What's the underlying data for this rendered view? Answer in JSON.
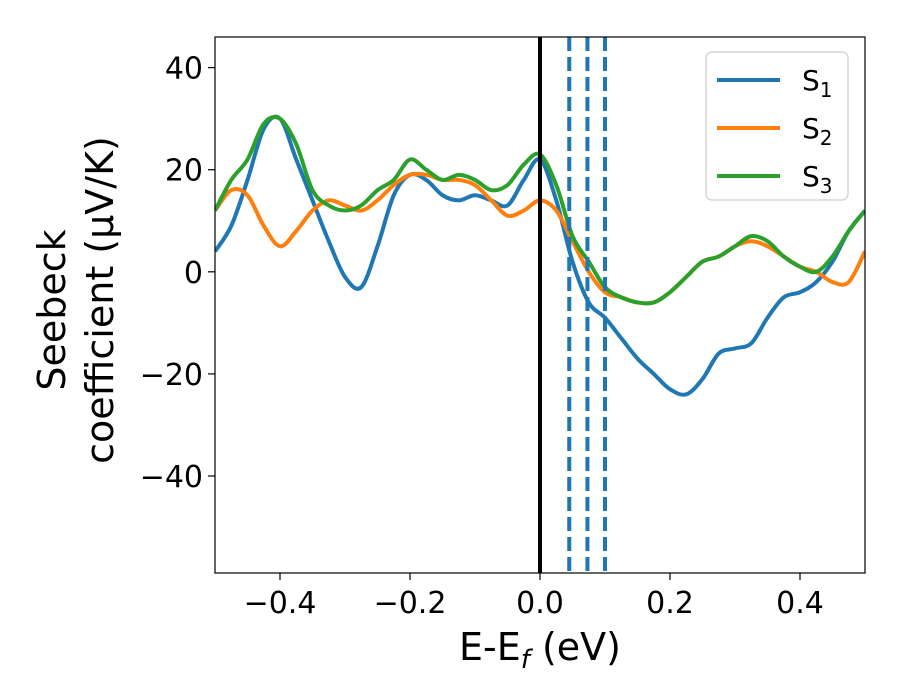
{
  "chart_data": {
    "type": "line",
    "title": "",
    "xlabel": {
      "main": "E-E",
      "sub": "f",
      "unit": " (eV)"
    },
    "ylabel": {
      "line1": "Seebeck",
      "line2": "coefficient  (μV/K)"
    },
    "xlim": [
      -0.5,
      0.5
    ],
    "ylim": [
      -59,
      46
    ],
    "xticks": [
      {
        "value": -0.4,
        "label": "−0.4"
      },
      {
        "value": -0.2,
        "label": "−0.2"
      },
      {
        "value": 0.0,
        "label": "0.0"
      },
      {
        "value": 0.2,
        "label": "0.2"
      },
      {
        "value": 0.4,
        "label": "0.4"
      }
    ],
    "yticks": [
      {
        "value": 40,
        "label": "40"
      },
      {
        "value": 20,
        "label": "20"
      },
      {
        "value": 0,
        "label": "0"
      },
      {
        "value": -20,
        "label": "−20"
      },
      {
        "value": -40,
        "label": "−40"
      }
    ],
    "grid": false,
    "legend_position": "top-right",
    "x": [
      -0.5,
      -0.475,
      -0.45,
      -0.425,
      -0.4,
      -0.375,
      -0.35,
      -0.325,
      -0.3,
      -0.275,
      -0.25,
      -0.225,
      -0.2,
      -0.175,
      -0.15,
      -0.125,
      -0.1,
      -0.075,
      -0.05,
      -0.025,
      0.0,
      0.025,
      0.05,
      0.075,
      0.1,
      0.125,
      0.15,
      0.175,
      0.2,
      0.225,
      0.25,
      0.275,
      0.3,
      0.325,
      0.35,
      0.375,
      0.4,
      0.425,
      0.45,
      0.475,
      0.5
    ],
    "series": [
      {
        "name": "S",
        "sub": "1",
        "color": "#1f77b4",
        "values": [
          4,
          9,
          18,
          28,
          30,
          22,
          14,
          6,
          -1,
          -3,
          5,
          15,
          19,
          18,
          15,
          14,
          15,
          14,
          13,
          18,
          22,
          14,
          2,
          -6,
          -9,
          -13,
          -17,
          -20,
          -23,
          -24,
          -21,
          -16,
          -15,
          -14,
          -9,
          -5,
          -4,
          -2,
          2,
          8,
          12
        ]
      },
      {
        "name": "S",
        "sub": "2",
        "color": "#ff7f0e",
        "values": [
          12,
          16,
          15,
          9,
          5,
          8,
          12,
          14,
          13,
          12,
          14,
          17,
          19,
          19,
          18,
          18,
          17,
          14,
          11,
          12,
          14,
          12,
          6,
          0,
          -4,
          -5,
          -6,
          -6,
          -4,
          -1,
          2,
          3,
          5,
          6,
          5,
          3,
          1,
          0,
          -2,
          -2,
          4
        ]
      },
      {
        "name": "S",
        "sub": "3",
        "color": "#2ca02c",
        "values": [
          12,
          18,
          22,
          29,
          30,
          25,
          16,
          13,
          12,
          13,
          16,
          18,
          22,
          20,
          18,
          19,
          18,
          16,
          17,
          21,
          23,
          17,
          7,
          2,
          -3,
          -5,
          -6,
          -6,
          -4,
          -1,
          2,
          3,
          5,
          7,
          6,
          3,
          1,
          0,
          3,
          8,
          12
        ]
      }
    ],
    "vlines": [
      {
        "x": 0.0,
        "style": "solid",
        "color": "#000000"
      },
      {
        "x": 0.045,
        "style": "dashed",
        "color": "#1f77b4"
      },
      {
        "x": 0.073,
        "style": "dashed",
        "color": "#1f77b4"
      },
      {
        "x": 0.1,
        "style": "dashed",
        "color": "#1f77b4"
      }
    ]
  }
}
